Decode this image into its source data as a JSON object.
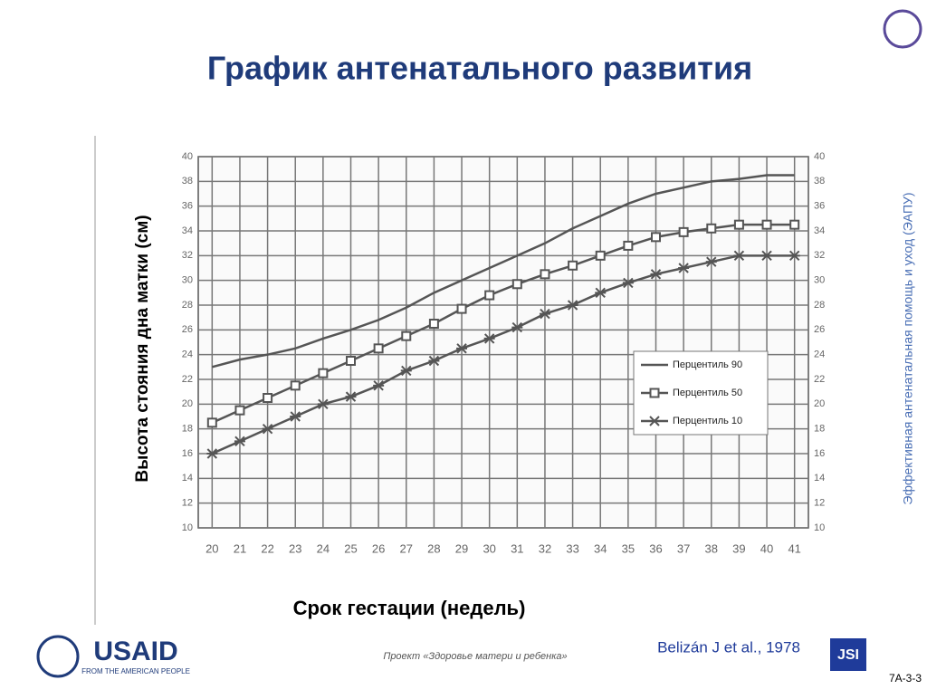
{
  "slide": {
    "side_text": "Эффективная антенатальная помощь и уход (ЭАПУ)",
    "project": "Проект «Здоровье матери и ребенка»",
    "citation": "Belizán J et al., 1978",
    "slide_id": "7А-3-3",
    "usaid": "USAID",
    "usaid_tagline": "FROM THE AMERICAN PEOPLE",
    "jsi": "JSI"
  },
  "chart_data": {
    "type": "line",
    "title": "График антенатального развития",
    "y_label": "Высота стояния дна матки (см)",
    "x_label": "Срок гестации (недель)",
    "x": [
      20,
      21,
      22,
      23,
      24,
      25,
      26,
      27,
      28,
      29,
      30,
      31,
      32,
      33,
      34,
      35,
      36,
      37,
      38,
      39,
      40,
      41
    ],
    "series": [
      {
        "name": "Перцентиль 90",
        "color": "#555555",
        "marker": "none",
        "values": [
          23,
          23.6,
          24,
          24.5,
          25.3,
          26,
          26.8,
          27.8,
          29,
          30,
          31,
          32,
          33,
          34.2,
          35.2,
          36.2,
          37,
          37.5,
          38,
          38.2,
          38.5,
          38.5
        ]
      },
      {
        "name": "Перцентиль 50",
        "color": "#555555",
        "marker": "square",
        "values": [
          18.5,
          19.5,
          20.5,
          21.5,
          22.5,
          23.5,
          24.5,
          25.5,
          26.5,
          27.7,
          28.8,
          29.7,
          30.5,
          31.2,
          32,
          32.8,
          33.5,
          33.9,
          34.2,
          34.5,
          34.5,
          34.5
        ]
      },
      {
        "name": "Перцентиль 10",
        "color": "#555555",
        "marker": "star",
        "values": [
          16,
          17,
          18,
          19,
          20,
          20.6,
          21.5,
          22.7,
          23.5,
          24.5,
          25.3,
          26.2,
          27.3,
          28,
          29,
          29.8,
          30.5,
          31,
          31.5,
          32,
          32,
          32
        ]
      }
    ],
    "xlim": [
      19.5,
      41.5
    ],
    "xticks": [
      20,
      21,
      22,
      23,
      24,
      25,
      26,
      27,
      28,
      29,
      30,
      31,
      32,
      33,
      34,
      35,
      36,
      37,
      38,
      39,
      40,
      41
    ],
    "ylim": [
      10,
      40
    ],
    "yticks": [
      10,
      12,
      14,
      16,
      18,
      20,
      22,
      24,
      26,
      28,
      30,
      32,
      34,
      36,
      38,
      40
    ],
    "grid": true
  }
}
